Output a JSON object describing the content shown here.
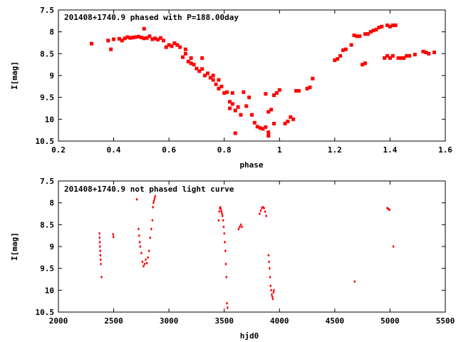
{
  "chart_data": [
    {
      "type": "scatter",
      "title": "201408+1740.9 phased with P=188.00day",
      "xlabel": "phase",
      "ylabel": "I[mag]",
      "xlim": [
        0.2,
        1.6
      ],
      "ylim": [
        7.5,
        10.5
      ],
      "y_inverted": true,
      "xticks": [
        "0.2",
        "0.4",
        "0.6",
        "0.8",
        "1",
        "1.2",
        "1.4",
        "1.6"
      ],
      "yticks": [
        "7.5",
        "8",
        "8.5",
        "9",
        "9.5",
        "10",
        "10.5"
      ],
      "marker_color": "#ff0000",
      "marker": "filled-square",
      "points": [
        [
          0.32,
          8.27
        ],
        [
          0.38,
          8.2
        ],
        [
          0.39,
          8.4
        ],
        [
          0.4,
          8.17
        ],
        [
          0.42,
          8.16
        ],
        [
          0.43,
          8.2
        ],
        [
          0.44,
          8.15
        ],
        [
          0.45,
          8.12
        ],
        [
          0.46,
          8.14
        ],
        [
          0.47,
          8.13
        ],
        [
          0.48,
          8.12
        ],
        [
          0.49,
          8.11
        ],
        [
          0.5,
          8.13
        ],
        [
          0.51,
          7.93
        ],
        [
          0.51,
          8.15
        ],
        [
          0.52,
          8.14
        ],
        [
          0.53,
          8.1
        ],
        [
          0.54,
          8.17
        ],
        [
          0.55,
          8.15
        ],
        [
          0.56,
          8.18
        ],
        [
          0.57,
          8.14
        ],
        [
          0.58,
          8.2
        ],
        [
          0.59,
          8.35
        ],
        [
          0.6,
          8.3
        ],
        [
          0.61,
          8.33
        ],
        [
          0.62,
          8.26
        ],
        [
          0.63,
          8.3
        ],
        [
          0.64,
          8.35
        ],
        [
          0.65,
          8.58
        ],
        [
          0.66,
          8.4
        ],
        [
          0.66,
          8.5
        ],
        [
          0.67,
          8.68
        ],
        [
          0.68,
          8.6
        ],
        [
          0.68,
          8.72
        ],
        [
          0.69,
          8.75
        ],
        [
          0.7,
          8.84
        ],
        [
          0.71,
          8.9
        ],
        [
          0.72,
          8.6
        ],
        [
          0.72,
          8.85
        ],
        [
          0.73,
          9.0
        ],
        [
          0.74,
          8.95
        ],
        [
          0.75,
          9.05
        ],
        [
          0.76,
          9.1
        ],
        [
          0.76,
          9.0
        ],
        [
          0.77,
          9.2
        ],
        [
          0.78,
          9.3
        ],
        [
          0.78,
          9.1
        ],
        [
          0.79,
          9.25
        ],
        [
          0.8,
          9.4
        ],
        [
          0.81,
          9.38
        ],
        [
          0.82,
          9.6
        ],
        [
          0.82,
          9.75
        ],
        [
          0.83,
          9.4
        ],
        [
          0.83,
          9.65
        ],
        [
          0.84,
          9.8
        ],
        [
          0.84,
          10.32
        ],
        [
          0.85,
          9.72
        ],
        [
          0.86,
          9.9
        ],
        [
          0.87,
          9.38
        ],
        [
          0.88,
          9.7
        ],
        [
          0.89,
          9.5
        ],
        [
          0.9,
          9.9
        ],
        [
          0.91,
          10.08
        ],
        [
          0.92,
          10.17
        ],
        [
          0.93,
          10.2
        ],
        [
          0.94,
          10.22
        ],
        [
          0.95,
          10.18
        ],
        [
          0.96,
          10.3
        ],
        [
          0.95,
          9.42
        ],
        [
          0.96,
          9.83
        ],
        [
          0.97,
          9.78
        ],
        [
          0.98,
          9.45
        ],
        [
          0.99,
          9.4
        ],
        [
          0.96,
          10.38
        ],
        [
          0.98,
          10.1
        ],
        [
          1.0,
          9.33
        ],
        [
          1.02,
          10.1
        ],
        [
          1.03,
          10.05
        ],
        [
          1.04,
          9.95
        ],
        [
          1.05,
          10.0
        ],
        [
          1.06,
          9.35
        ],
        [
          1.07,
          9.35
        ],
        [
          1.1,
          9.3
        ],
        [
          1.11,
          9.27
        ],
        [
          1.12,
          9.07
        ],
        [
          1.2,
          8.65
        ],
        [
          1.21,
          8.62
        ],
        [
          1.22,
          8.55
        ],
        [
          1.23,
          8.42
        ],
        [
          1.24,
          8.4
        ],
        [
          1.26,
          8.3
        ],
        [
          1.27,
          8.08
        ],
        [
          1.28,
          8.1
        ],
        [
          1.29,
          8.1
        ],
        [
          1.3,
          8.75
        ],
        [
          1.31,
          8.72
        ],
        [
          1.31,
          8.05
        ],
        [
          1.32,
          8.05
        ],
        [
          1.33,
          8.0
        ],
        [
          1.34,
          7.97
        ],
        [
          1.35,
          7.95
        ],
        [
          1.36,
          7.9
        ],
        [
          1.37,
          7.88
        ],
        [
          1.38,
          8.6
        ],
        [
          1.39,
          8.55
        ],
        [
          1.4,
          8.6
        ],
        [
          1.41,
          8.55
        ],
        [
          1.39,
          7.85
        ],
        [
          1.4,
          7.88
        ],
        [
          1.41,
          7.85
        ],
        [
          1.42,
          7.85
        ],
        [
          1.43,
          8.6
        ],
        [
          1.44,
          8.6
        ],
        [
          1.45,
          8.6
        ],
        [
          1.46,
          8.55
        ],
        [
          1.47,
          8.55
        ],
        [
          1.49,
          8.52
        ],
        [
          1.52,
          8.45
        ],
        [
          1.53,
          8.47
        ],
        [
          1.54,
          8.5
        ],
        [
          1.56,
          8.47
        ]
      ]
    },
    {
      "type": "scatter",
      "title": "201408+1740.9 not phased light curve",
      "xlabel": "hjd0",
      "ylabel": "I[mag]",
      "xlim": [
        2000,
        5500
      ],
      "ylim": [
        7.5,
        10.5
      ],
      "y_inverted": true,
      "xticks": [
        "2000",
        "2500",
        "3000",
        "3500",
        "4000",
        "4500",
        "5000",
        "5500"
      ],
      "yticks": [
        "7.5",
        "8",
        "8.5",
        "9",
        "9.5",
        "10",
        "10.5"
      ],
      "marker_color": "#ff0000",
      "marker": "small-diamond",
      "points": [
        [
          2370,
          8.7
        ],
        [
          2372,
          8.8
        ],
        [
          2374,
          8.9
        ],
        [
          2376,
          9.0
        ],
        [
          2378,
          9.1
        ],
        [
          2380,
          9.2
        ],
        [
          2382,
          9.3
        ],
        [
          2384,
          9.4
        ],
        [
          2390,
          9.7
        ],
        [
          2495,
          8.72
        ],
        [
          2498,
          8.78
        ],
        [
          2710,
          7.92
        ],
        [
          2725,
          8.6
        ],
        [
          2730,
          8.75
        ],
        [
          2735,
          8.9
        ],
        [
          2740,
          9.0
        ],
        [
          2750,
          9.15
        ],
        [
          2760,
          9.35
        ],
        [
          2770,
          9.45
        ],
        [
          2780,
          9.4
        ],
        [
          2790,
          9.3
        ],
        [
          2800,
          9.38
        ],
        [
          2810,
          9.25
        ],
        [
          2820,
          9.1
        ],
        [
          2830,
          8.8
        ],
        [
          2840,
          8.6
        ],
        [
          2850,
          8.4
        ],
        [
          2855,
          8.1
        ],
        [
          2860,
          8.0
        ],
        [
          2865,
          7.95
        ],
        [
          2870,
          7.9
        ],
        [
          2875,
          7.85
        ],
        [
          3450,
          8.4
        ],
        [
          3455,
          8.2
        ],
        [
          3460,
          8.12
        ],
        [
          3465,
          8.1
        ],
        [
          3470,
          8.15
        ],
        [
          3475,
          8.2
        ],
        [
          3480,
          8.25
        ],
        [
          3485,
          8.3
        ],
        [
          3490,
          8.4
        ],
        [
          3495,
          8.55
        ],
        [
          3500,
          8.7
        ],
        [
          3505,
          8.9
        ],
        [
          3510,
          9.1
        ],
        [
          3515,
          9.4
        ],
        [
          3520,
          9.7
        ],
        [
          3525,
          10.3
        ],
        [
          3530,
          10.4
        ],
        [
          3630,
          8.6
        ],
        [
          3640,
          8.55
        ],
        [
          3650,
          8.5
        ],
        [
          3660,
          8.55
        ],
        [
          3820,
          8.25
        ],
        [
          3830,
          8.18
        ],
        [
          3840,
          8.12
        ],
        [
          3850,
          8.1
        ],
        [
          3860,
          8.12
        ],
        [
          3870,
          8.2
        ],
        [
          3880,
          8.3
        ],
        [
          3900,
          9.2
        ],
        [
          3905,
          9.35
        ],
        [
          3910,
          9.5
        ],
        [
          3915,
          9.7
        ],
        [
          3920,
          9.9
        ],
        [
          3925,
          10.0
        ],
        [
          3930,
          10.1
        ],
        [
          3935,
          10.15
        ],
        [
          3940,
          10.2
        ],
        [
          3945,
          10.05
        ],
        [
          3950,
          10.0
        ],
        [
          4680,
          9.8
        ],
        [
          4975,
          8.12
        ],
        [
          4985,
          8.14
        ],
        [
          4995,
          8.16
        ],
        [
          5030,
          9.0
        ]
      ]
    }
  ]
}
